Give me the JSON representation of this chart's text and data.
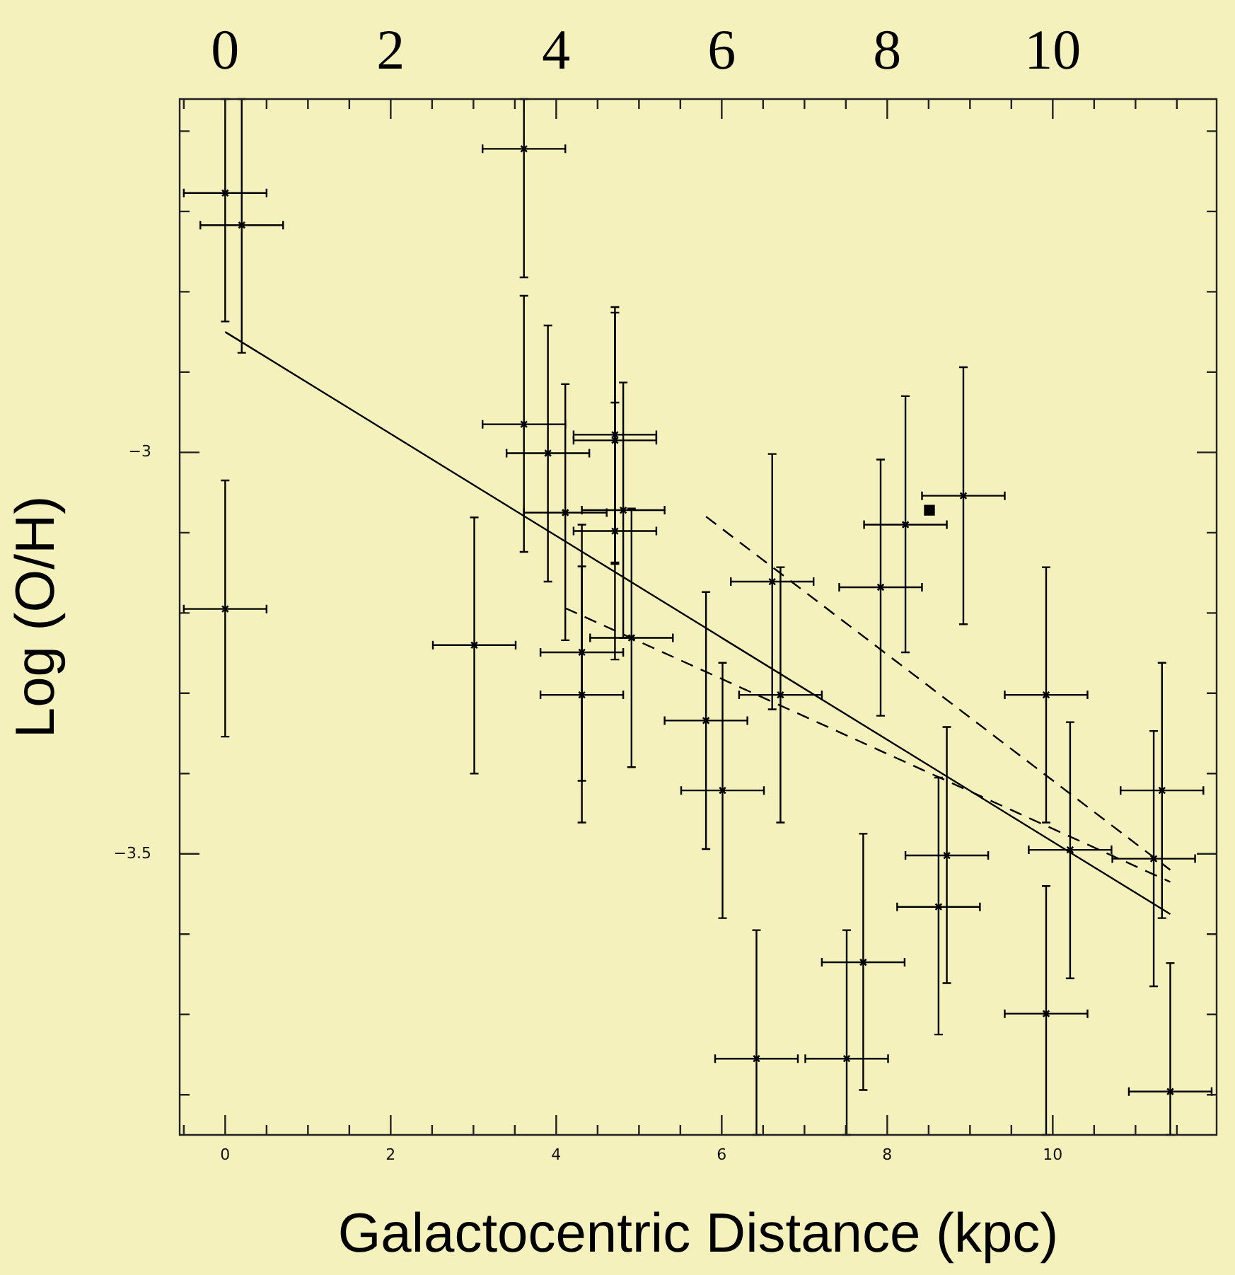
{
  "chart_data": {
    "type": "scatter",
    "xlabel": "Galactocentric Distance (kpc)",
    "ylabel": "Log (O/H)",
    "xlim": [
      -0.55,
      11.98
    ],
    "x2lim": [
      -0.55,
      11.98
    ],
    "ylim": [
      -3.85,
      -2.56
    ],
    "xticks": [
      {
        "value": -0.5,
        "label": null
      },
      0,
      {
        "value": 0.5,
        "label": null
      },
      {
        "value": 1,
        "label": null
      },
      {
        "value": 1.5,
        "label": null
      },
      2,
      {
        "value": 2.5,
        "label": null
      },
      {
        "value": 3,
        "label": null
      },
      {
        "value": 3.5,
        "label": null
      },
      4,
      {
        "value": 4.5,
        "label": null
      },
      {
        "value": 5,
        "label": null
      },
      {
        "value": 5.5,
        "label": null
      },
      6,
      {
        "value": 6.5,
        "label": null
      },
      {
        "value": 7,
        "label": null
      },
      {
        "value": 7.5,
        "label": null
      },
      8,
      {
        "value": 8.5,
        "label": null
      },
      {
        "value": 9,
        "label": null
      },
      {
        "value": 9.5,
        "label": null
      },
      10,
      {
        "value": 10.5,
        "label": null
      },
      {
        "value": 11,
        "label": null
      },
      {
        "value": 11.5,
        "label": null
      }
    ],
    "x2ticks": [
      {
        "value": -0.5,
        "label": null
      },
      0,
      {
        "value": 0.5,
        "label": null
      },
      {
        "value": 1,
        "label": null
      },
      {
        "value": 1.5,
        "label": null
      },
      2,
      {
        "value": 2.5,
        "label": null
      },
      {
        "value": 3,
        "label": null
      },
      {
        "value": 3.5,
        "label": null
      },
      4,
      {
        "value": 4.5,
        "label": null
      },
      {
        "value": 5,
        "label": null
      },
      {
        "value": 5.5,
        "label": null
      },
      6,
      {
        "value": 6.5,
        "label": null
      },
      {
        "value": 7,
        "label": null
      },
      {
        "value": 7.5,
        "label": null
      },
      8,
      {
        "value": 8.5,
        "label": null
      },
      {
        "value": 9,
        "label": null
      },
      {
        "value": 9.5,
        "label": null
      },
      10,
      {
        "value": 10.5,
        "label": null
      },
      {
        "value": 11,
        "label": null
      },
      {
        "value": 11.5,
        "label": null
      }
    ],
    "yticks": [
      {
        "value": -3.8,
        "label": null
      },
      {
        "value": -3.7,
        "label": null
      },
      {
        "value": -3.6,
        "label": null
      },
      {
        "value": -3.5,
        "label": "−3.5"
      },
      {
        "value": -3.4,
        "label": null
      },
      {
        "value": -3.3,
        "label": null
      },
      {
        "value": -3.2,
        "label": null
      },
      {
        "value": -3.1,
        "label": null
      },
      {
        "value": -3,
        "label": "−3"
      },
      {
        "value": -2.9,
        "label": null
      },
      {
        "value": -2.8,
        "label": null
      },
      {
        "value": -2.7,
        "label": null
      },
      {
        "value": -2.6,
        "label": null
      }
    ],
    "marker": "cross",
    "series": [
      {
        "color": "#000000",
        "x": [
          0.0,
          0.2,
          3.61,
          3.61,
          3.9,
          4.11,
          4.71,
          4.71,
          4.81,
          4.91,
          4.71,
          4.31,
          4.31,
          3.01,
          0.0,
          8.92,
          8.22,
          7.92,
          6.61,
          6.71,
          5.81,
          6.01,
          9.92,
          11.32,
          8.72,
          8.62,
          10.21,
          11.22,
          7.71,
          7.51,
          6.42,
          9.92,
          11.42
        ],
        "values": [
          -2.677,
          -2.717,
          -2.622,
          -2.965,
          -3.001,
          -3.075,
          -2.978,
          -2.985,
          -3.072,
          -3.231,
          -3.098,
          -3.249,
          -3.302,
          -3.24,
          -3.195,
          -3.054,
          -3.09,
          -3.168,
          -3.161,
          -3.302,
          -3.334,
          -3.421,
          -3.302,
          -3.421,
          -3.502,
          -3.566,
          -3.495,
          -3.506,
          -3.635,
          -3.755,
          -3.755,
          -3.699,
          -3.796
        ],
        "errors": [
          [
            -2.837,
            -2.56
          ],
          [
            -2.876,
            -2.56
          ],
          [
            -2.782,
            -2.56
          ],
          [
            -3.124,
            -2.805
          ],
          [
            -3.161,
            -2.842
          ],
          [
            -3.234,
            -2.915
          ],
          [
            -3.137,
            -2.819
          ],
          [
            -3.139,
            -2.826
          ],
          [
            -3.231,
            -2.913
          ],
          [
            -3.392,
            -3.07
          ],
          [
            -3.258,
            -2.938
          ],
          [
            -3.409,
            -3.09
          ],
          [
            -3.461,
            -3.142
          ],
          [
            -3.4,
            -3.081
          ],
          [
            -3.354,
            -3.035
          ],
          [
            -3.214,
            -2.894
          ],
          [
            -3.249,
            -2.93
          ],
          [
            -3.328,
            -3.009
          ],
          [
            -3.32,
            -3.002
          ],
          [
            -3.461,
            -3.143
          ],
          [
            -3.494,
            -3.174
          ],
          [
            -3.58,
            -3.262
          ],
          [
            -3.461,
            -3.143
          ],
          [
            -3.58,
            -3.262
          ],
          [
            -3.661,
            -3.342
          ],
          [
            -3.725,
            -3.405
          ],
          [
            -3.655,
            -3.336
          ],
          [
            -3.665,
            -3.347
          ],
          [
            -3.794,
            -3.475
          ],
          [
            -3.85,
            -3.595
          ],
          [
            -3.85,
            -3.595
          ],
          [
            -3.85,
            -3.54
          ],
          [
            -3.85,
            -3.636
          ]
        ],
        "xerrors": [
          0.5,
          0.5,
          0.5,
          0.5,
          0.5,
          0.5,
          0.5,
          0.5,
          0.5,
          0.5,
          0.5,
          0.5,
          0.5,
          0.5,
          0.5,
          0.5,
          0.5,
          0.5,
          0.5,
          0.5,
          0.5,
          0.5,
          0.5,
          0.5,
          0.5,
          0.5,
          0.5,
          0.5,
          0.5,
          0.5,
          0.5,
          0.5,
          0.5
        ]
      },
      {
        "type": "scatter",
        "color": "#000000",
        "marker": "square",
        "x": [
          8.51
        ],
        "values": [
          -3.072
        ]
      },
      {
        "type": "line",
        "color": "#000000",
        "marker": "none",
        "line_style": "solid",
        "x": [
          0.0,
          11.42
        ],
        "values": [
          -2.85,
          -3.575
        ]
      },
      {
        "type": "line",
        "color": "#000000",
        "marker": "none",
        "line_style": "dashed",
        "x": [
          4.11,
          11.42
        ],
        "values": [
          -3.194,
          -3.535
        ]
      },
      {
        "type": "line",
        "color": "#000000",
        "marker": "none",
        "line_style": "dashed",
        "x": [
          5.81,
          11.42
        ],
        "values": [
          -3.08,
          -3.52
        ]
      }
    ]
  }
}
